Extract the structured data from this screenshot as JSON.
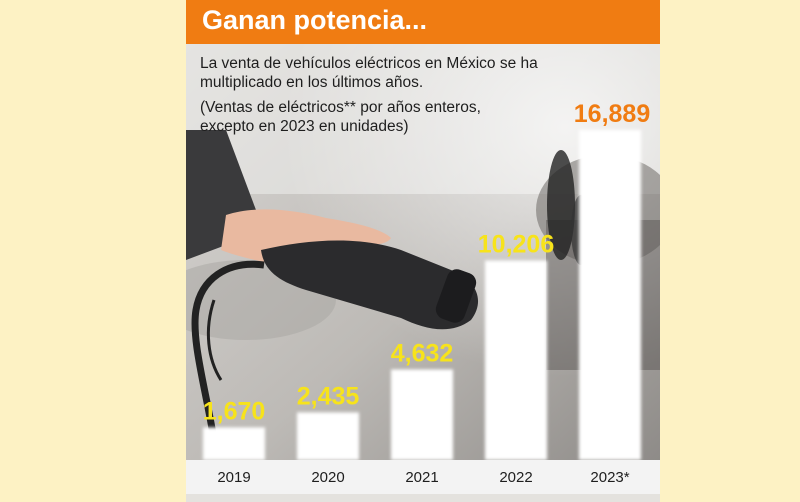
{
  "header": {
    "title": "Ganan potencia...",
    "subtitle": "La venta de vehículos eléctricos en México se ha multiplicado en los últimos años.",
    "note": "(Ventas de eléctricos** por años enteros, excepto en 2023 en unidades)"
  },
  "colors": {
    "accent": "#f07c12",
    "value_label": "#f7e31b",
    "bar": "#ffffff"
  },
  "chart_data": {
    "type": "bar",
    "title": "Ganan potencia...",
    "xlabel": "",
    "ylabel": "",
    "categories": [
      "2019",
      "2020",
      "2021",
      "2022",
      "2023*"
    ],
    "values": [
      1670,
      2435,
      4632,
      10206,
      16889
    ],
    "value_labels": [
      "1,670",
      "2,435",
      "4,632",
      "10,206",
      "16,889"
    ],
    "ylim": [
      0,
      17500
    ],
    "grid": false,
    "legend": "none"
  }
}
